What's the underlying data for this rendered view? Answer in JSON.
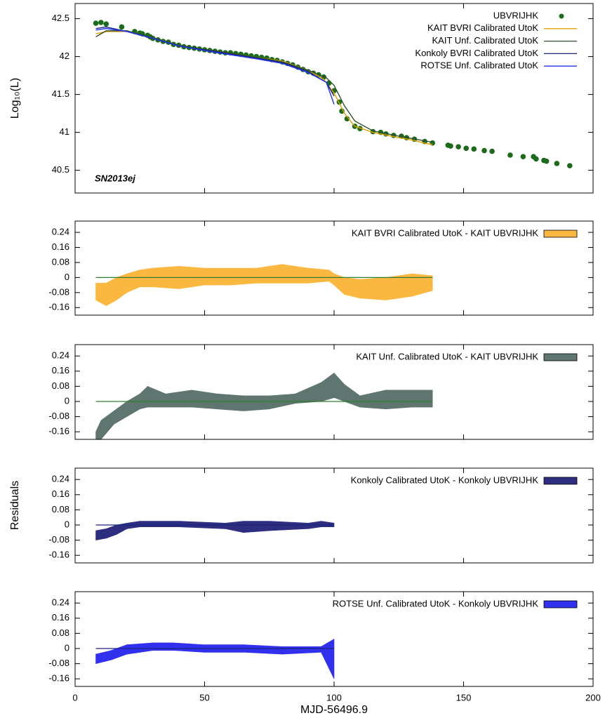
{
  "chart_data": [
    {
      "type": "line",
      "ylabel": "Log₁₀(L)",
      "annotation": "SN2013ej",
      "xlim": [
        0,
        200
      ],
      "xticks": [
        0,
        50,
        100,
        150,
        200
      ],
      "show_xtick_labels": false,
      "ylim": [
        40.2,
        42.7
      ],
      "yticks": [
        40.5,
        41,
        41.5,
        42,
        42.5
      ],
      "legend": "top-right",
      "series": [
        {
          "name": "UBVRIJHK",
          "style": "points",
          "color": "#1b6b1b",
          "x": [
            8,
            10,
            12,
            18,
            23,
            25,
            26,
            28,
            29,
            30,
            32,
            34,
            36,
            38,
            40,
            42,
            44,
            46,
            48,
            50,
            52,
            54,
            56,
            58,
            60,
            62,
            64,
            66,
            68,
            70,
            72,
            74,
            76,
            78,
            80,
            82,
            84,
            86,
            88,
            90,
            92,
            94,
            96,
            98,
            100,
            102,
            103,
            105,
            108,
            110,
            115,
            118,
            120,
            123,
            126,
            128,
            131,
            135,
            138,
            144,
            145,
            148,
            151,
            154,
            158,
            161,
            168,
            173,
            177,
            178,
            181,
            182,
            186,
            191
          ],
          "values": [
            42.44,
            42.45,
            42.43,
            42.39,
            42.33,
            42.31,
            42.3,
            42.28,
            42.26,
            42.24,
            42.22,
            42.2,
            42.19,
            42.16,
            42.15,
            42.13,
            42.12,
            42.11,
            42.1,
            42.09,
            42.08,
            42.07,
            42.06,
            42.05,
            42.05,
            42.04,
            42.03,
            42.02,
            42.01,
            42.0,
            41.99,
            41.98,
            41.96,
            41.95,
            41.93,
            41.91,
            41.89,
            41.86,
            41.83,
            41.8,
            41.78,
            41.76,
            41.73,
            41.65,
            41.55,
            41.4,
            41.28,
            41.18,
            41.08,
            41.05,
            41.01,
            41.0,
            40.98,
            40.96,
            40.95,
            40.93,
            40.91,
            40.88,
            40.86,
            40.83,
            40.82,
            40.81,
            40.79,
            40.78,
            40.76,
            40.75,
            40.7,
            40.68,
            40.68,
            40.65,
            40.63,
            40.62,
            40.59,
            40.56
          ]
        },
        {
          "name": "KAIT BVRI Calibrated UtoK",
          "style": "line",
          "color": "#e0a000",
          "x": [
            8,
            12,
            20,
            30,
            40,
            55,
            70,
            80,
            90,
            96,
            100,
            104,
            108,
            115,
            125,
            130,
            136,
            138
          ],
          "values": [
            42.3,
            42.33,
            42.33,
            42.25,
            42.15,
            42.07,
            41.99,
            41.94,
            41.82,
            41.7,
            41.52,
            41.25,
            41.08,
            41.0,
            40.93,
            40.9,
            40.85,
            40.84
          ]
        },
        {
          "name": "KAIT Unf. Calibrated UtoK",
          "style": "line",
          "color": "#2f4f2f",
          "x": [
            8,
            12,
            20,
            30,
            40,
            55,
            70,
            80,
            90,
            97,
            100,
            104,
            108,
            115,
            125,
            138
          ],
          "values": [
            42.26,
            42.34,
            42.34,
            42.25,
            42.15,
            42.07,
            41.99,
            41.93,
            41.82,
            41.72,
            41.62,
            41.35,
            41.15,
            41.02,
            40.95,
            40.87
          ]
        },
        {
          "name": "Konkoly BVRI Calibrated UtoK",
          "style": "line",
          "color": "#1a237e",
          "x": [
            8,
            12,
            20,
            30,
            40,
            55,
            70,
            80,
            90,
            97,
            100
          ],
          "values": [
            42.37,
            42.39,
            42.33,
            42.24,
            42.14,
            42.06,
            41.98,
            41.92,
            41.8,
            41.66,
            41.48
          ]
        },
        {
          "name": "ROTSE Unf. Calibrated UtoK",
          "style": "line",
          "color": "#2233ee",
          "x": [
            8,
            12,
            20,
            30,
            40,
            55,
            70,
            80,
            90,
            97,
            100
          ],
          "values": [
            42.35,
            42.37,
            42.33,
            42.24,
            42.14,
            42.05,
            41.97,
            41.91,
            41.79,
            41.66,
            41.37
          ]
        }
      ]
    },
    {
      "type": "band",
      "xlim": [
        0,
        200
      ],
      "xticks": [
        0,
        50,
        100,
        150,
        200
      ],
      "show_xtick_labels": false,
      "ylim": [
        -0.2,
        0.3
      ],
      "yticks": [
        -0.16,
        -0.08,
        0,
        0.08,
        0.16,
        0.24
      ],
      "reference_line": {
        "y": 0,
        "x": [
          8,
          138
        ],
        "color": "#2e7d32"
      },
      "series": [
        {
          "name": "KAIT BVRI Calibrated UtoK - KAIT UBVRIJHK",
          "color": "#fbb840",
          "x": [
            8,
            12,
            16,
            20,
            25,
            30,
            40,
            50,
            60,
            70,
            80,
            90,
            98,
            100,
            104,
            110,
            120,
            130,
            138
          ],
          "lower": [
            -0.12,
            -0.15,
            -0.12,
            -0.08,
            -0.05,
            -0.05,
            -0.06,
            -0.04,
            -0.04,
            -0.03,
            -0.03,
            -0.03,
            -0.02,
            -0.04,
            -0.09,
            -0.11,
            -0.12,
            -0.1,
            -0.07
          ],
          "upper": [
            -0.03,
            -0.03,
            0,
            0.02,
            0.04,
            0.05,
            0.06,
            0.05,
            0.05,
            0.05,
            0.07,
            0.05,
            0.04,
            0.02,
            0,
            -0.01,
            0,
            0.02,
            0.01
          ]
        }
      ]
    },
    {
      "type": "band",
      "xlim": [
        0,
        200
      ],
      "xticks": [
        0,
        50,
        100,
        150,
        200
      ],
      "show_xtick_labels": false,
      "ylim": [
        -0.2,
        0.3
      ],
      "yticks": [
        -0.16,
        -0.08,
        0,
        0.08,
        0.16,
        0.24
      ],
      "reference_line": {
        "y": 0,
        "x": [
          8,
          138
        ],
        "color": "#2e7d32"
      },
      "series": [
        {
          "name": "KAIT Unf. Calibrated UtoK - KAIT UBVRIJHK",
          "color": "#5f7570",
          "x": [
            8,
            10,
            15,
            20,
            25,
            28,
            35,
            45,
            55,
            65,
            75,
            85,
            95,
            100,
            104,
            110,
            120,
            130,
            138
          ],
          "lower": [
            -0.2,
            -0.2,
            -0.12,
            -0.08,
            -0.04,
            -0.03,
            -0.03,
            -0.03,
            -0.04,
            -0.05,
            -0.04,
            -0.01,
            0,
            0.02,
            0,
            -0.03,
            -0.04,
            -0.03,
            -0.03
          ],
          "upper": [
            -0.16,
            -0.1,
            -0.05,
            0,
            0.04,
            0.08,
            0.04,
            0.06,
            0.04,
            0.03,
            0.03,
            0.04,
            0.1,
            0.15,
            0.09,
            0.03,
            0.06,
            0.06,
            0.06
          ]
        }
      ]
    },
    {
      "type": "band",
      "ylabel": "Residuals",
      "xlim": [
        0,
        200
      ],
      "xticks": [
        0,
        50,
        100,
        150,
        200
      ],
      "show_xtick_labels": false,
      "ylim": [
        -0.2,
        0.3
      ],
      "yticks": [
        -0.16,
        -0.08,
        0,
        0.08,
        0.16,
        0.24
      ],
      "reference_line": {
        "y": 0,
        "x": [
          8,
          100
        ],
        "color": "#1a237e"
      },
      "series": [
        {
          "name": "Konkoly Calibrated UtoK - Konkoly UBVRIJHK",
          "color": "#2e2e80",
          "x": [
            8,
            12,
            16,
            20,
            25,
            40,
            58,
            65,
            75,
            90,
            95,
            100
          ],
          "lower": [
            -0.08,
            -0.07,
            -0.05,
            -0.02,
            -0.01,
            -0.01,
            -0.02,
            -0.04,
            -0.03,
            -0.02,
            -0.01,
            -0.01
          ],
          "upper": [
            -0.03,
            -0.02,
            0,
            0.01,
            0.02,
            0.02,
            0.01,
            0.02,
            0.02,
            0.01,
            0.02,
            0.01
          ]
        }
      ]
    },
    {
      "type": "band",
      "xlabel": "MJD-56496.9",
      "xlim": [
        0,
        200
      ],
      "xticks": [
        0,
        50,
        100,
        150,
        200
      ],
      "show_xtick_labels": true,
      "ylim": [
        -0.2,
        0.3
      ],
      "yticks": [
        -0.16,
        -0.08,
        0,
        0.08,
        0.16,
        0.24
      ],
      "reference_line": {
        "y": 0,
        "x": [
          8,
          100
        ],
        "color": "#1a237e"
      },
      "series": [
        {
          "name": "ROTSE Unf. Calibrated UtoK - Konkoly UBVRIJHK",
          "color": "#3030ee",
          "x": [
            8,
            14,
            20,
            30,
            38,
            50,
            65,
            80,
            95,
            100
          ],
          "lower": [
            -0.08,
            -0.06,
            -0.03,
            -0.01,
            -0.01,
            -0.02,
            -0.02,
            -0.03,
            -0.02,
            -0.16
          ],
          "upper": [
            -0.03,
            -0.01,
            0.02,
            0.03,
            0.03,
            0.02,
            0.02,
            0.01,
            0.01,
            0.05
          ]
        }
      ]
    }
  ]
}
